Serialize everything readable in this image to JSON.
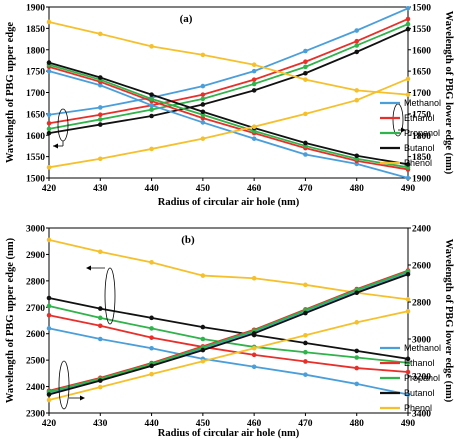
{
  "colors": {
    "Methanol": "#4a9fdb",
    "Ethanol": "#e8302b",
    "Propanol": "#2fb34a",
    "Butanol": "#111111",
    "Phenol": "#f5c02c"
  },
  "chart_data": [
    {
      "type": "line",
      "panel": "(a)",
      "x": [
        420,
        430,
        440,
        450,
        460,
        470,
        480,
        490
      ],
      "xlabel": "Radius of circular  air hole (nm)",
      "ylabel_left": "Wavelength of PBG upper edge",
      "ylabel_right": "Wavelength of PBG lower edge (nm)",
      "ylim_left": [
        1500,
        1900
      ],
      "yticks_left": [
        1500,
        1550,
        1600,
        1650,
        1700,
        1750,
        1800,
        1850,
        1900
      ],
      "ylim_right": [
        1500,
        1900
      ],
      "yticks_right": [
        1500,
        1550,
        1600,
        1650,
        1700,
        1750,
        1800,
        1850,
        1900
      ],
      "right_axis_inverted": true,
      "legend": "right",
      "series": [
        {
          "name": "Methanol",
          "axis": "left",
          "values": [
            1648,
            1665,
            1688,
            1715,
            1750,
            1797,
            1845,
            1897
          ]
        },
        {
          "name": "Ethanol",
          "axis": "left",
          "values": [
            1628,
            1648,
            1670,
            1695,
            1730,
            1772,
            1820,
            1872
          ]
        },
        {
          "name": "Propanol",
          "axis": "left",
          "values": [
            1615,
            1637,
            1660,
            1685,
            1720,
            1760,
            1810,
            1860
          ]
        },
        {
          "name": "Butanol",
          "axis": "left",
          "values": [
            1605,
            1625,
            1645,
            1672,
            1705,
            1745,
            1795,
            1848
          ]
        },
        {
          "name": "Phenol",
          "axis": "left",
          "values": [
            1865,
            1837,
            1808,
            1788,
            1765,
            1730,
            1705,
            1695
          ]
        },
        {
          "name": "Methanol",
          "axis": "right",
          "values": [
            1650,
            1683,
            1730,
            1770,
            1808,
            1845,
            1867,
            1900
          ]
        },
        {
          "name": "Ethanol",
          "axis": "right",
          "values": [
            1640,
            1675,
            1720,
            1760,
            1795,
            1830,
            1860,
            1880
          ]
        },
        {
          "name": "Propanol",
          "axis": "right",
          "values": [
            1635,
            1670,
            1715,
            1752,
            1790,
            1825,
            1855,
            1875
          ]
        },
        {
          "name": "Butanol",
          "axis": "right",
          "values": [
            1630,
            1665,
            1705,
            1745,
            1783,
            1818,
            1848,
            1868
          ]
        },
        {
          "name": "Phenol",
          "axis": "right",
          "values": [
            1875,
            1855,
            1832,
            1808,
            1780,
            1750,
            1718,
            1668
          ]
        }
      ]
    },
    {
      "type": "line",
      "panel": "(b)",
      "x": [
        420,
        430,
        440,
        450,
        460,
        470,
        480,
        490
      ],
      "xlabel": "Radius of circular  air hole (nm)",
      "ylabel_left": "Wavelength of PBG upper edge (nm)",
      "ylabel_right": "Wavelength of PBG lower edge (nm)",
      "ylim_left": [
        2300,
        3000
      ],
      "yticks_left": [
        2300,
        2400,
        2500,
        2600,
        2700,
        2800,
        2900,
        3000
      ],
      "ylim_right": [
        2400,
        3400
      ],
      "yticks_right": [
        2400,
        2600,
        2800,
        3000,
        3200,
        3400
      ],
      "right_axis_inverted": true,
      "legend": "right",
      "series": [
        {
          "name": "Methanol",
          "axis": "left",
          "values": [
            2620,
            2580,
            2545,
            2505,
            2475,
            2445,
            2410,
            2370
          ]
        },
        {
          "name": "Ethanol",
          "axis": "left",
          "values": [
            2670,
            2630,
            2585,
            2550,
            2520,
            2495,
            2470,
            2455
          ]
        },
        {
          "name": "Propanol",
          "axis": "left",
          "values": [
            2705,
            2660,
            2620,
            2580,
            2550,
            2530,
            2510,
            2490
          ]
        },
        {
          "name": "Butanol",
          "axis": "left",
          "values": [
            2735,
            2695,
            2660,
            2625,
            2595,
            2565,
            2535,
            2505
          ]
        },
        {
          "name": "Phenol",
          "axis": "left",
          "values": [
            2955,
            2910,
            2870,
            2820,
            2810,
            2785,
            2755,
            2730
          ]
        },
        {
          "name": "Methanol",
          "axis": "right",
          "values": [
            3290,
            3220,
            3140,
            3050,
            2960,
            2850,
            2740,
            2640
          ]
        },
        {
          "name": "Ethanol",
          "axis": "right",
          "values": [
            3280,
            3210,
            3130,
            3040,
            2950,
            2840,
            2730,
            2630
          ]
        },
        {
          "name": "Propanol",
          "axis": "right",
          "values": [
            3285,
            3215,
            3135,
            3045,
            2955,
            2845,
            2735,
            2635
          ]
        },
        {
          "name": "Butanol",
          "axis": "right",
          "values": [
            3300,
            3225,
            3145,
            3060,
            2970,
            2860,
            2750,
            2650
          ]
        },
        {
          "name": "Phenol",
          "axis": "right",
          "values": [
            3330,
            3260,
            3190,
            3120,
            3050,
            2980,
            2910,
            2850
          ]
        }
      ]
    }
  ]
}
